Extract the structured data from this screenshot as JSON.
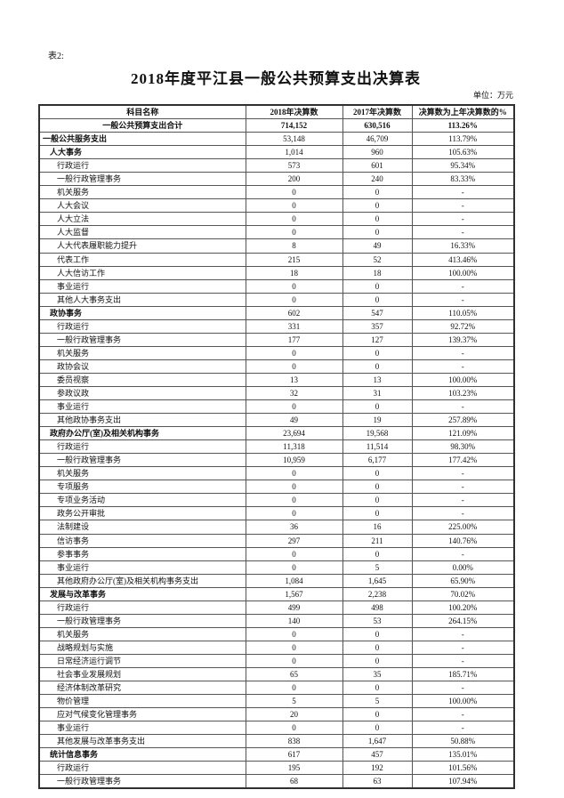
{
  "page": {
    "table_label": "表2:",
    "title": "2018年度平江县一般公共预算支出决算表",
    "unit_note": "单位：万元"
  },
  "table": {
    "columns": [
      "科目名称",
      "2018年决算数",
      "2017年决算数",
      "决算数为上年决算数的%"
    ],
    "rows": [
      {
        "level": 0,
        "name": "一般公共预算支出合计",
        "v2018": "714,152",
        "v2017": "630,516",
        "pct": "113.26%"
      },
      {
        "level": 1,
        "name": "一般公共服务支出",
        "v2018": "53,148",
        "v2017": "46,709",
        "pct": "113.79%"
      },
      {
        "level": 2,
        "name": "人大事务",
        "v2018": "1,014",
        "v2017": "960",
        "pct": "105.63%"
      },
      {
        "level": 3,
        "name": "行政运行",
        "v2018": "573",
        "v2017": "601",
        "pct": "95.34%"
      },
      {
        "level": 3,
        "name": "一般行政管理事务",
        "v2018": "200",
        "v2017": "240",
        "pct": "83.33%"
      },
      {
        "level": 3,
        "name": "机关服务",
        "v2018": "0",
        "v2017": "0",
        "pct": "-"
      },
      {
        "level": 3,
        "name": "人大会议",
        "v2018": "0",
        "v2017": "0",
        "pct": "-"
      },
      {
        "level": 3,
        "name": "人大立法",
        "v2018": "0",
        "v2017": "0",
        "pct": "-"
      },
      {
        "level": 3,
        "name": "人大监督",
        "v2018": "0",
        "v2017": "0",
        "pct": "-"
      },
      {
        "level": 3,
        "name": "人大代表履职能力提升",
        "v2018": "8",
        "v2017": "49",
        "pct": "16.33%"
      },
      {
        "level": 3,
        "name": "代表工作",
        "v2018": "215",
        "v2017": "52",
        "pct": "413.46%"
      },
      {
        "level": 3,
        "name": "人大信访工作",
        "v2018": "18",
        "v2017": "18",
        "pct": "100.00%"
      },
      {
        "level": 3,
        "name": "事业运行",
        "v2018": "0",
        "v2017": "0",
        "pct": "-"
      },
      {
        "level": 3,
        "name": "其他人大事务支出",
        "v2018": "0",
        "v2017": "0",
        "pct": "-"
      },
      {
        "level": 2,
        "name": "政协事务",
        "v2018": "602",
        "v2017": "547",
        "pct": "110.05%"
      },
      {
        "level": 3,
        "name": "行政运行",
        "v2018": "331",
        "v2017": "357",
        "pct": "92.72%"
      },
      {
        "level": 3,
        "name": "一般行政管理事务",
        "v2018": "177",
        "v2017": "127",
        "pct": "139.37%"
      },
      {
        "level": 3,
        "name": "机关服务",
        "v2018": "0",
        "v2017": "0",
        "pct": "-"
      },
      {
        "level": 3,
        "name": "政协会议",
        "v2018": "0",
        "v2017": "0",
        "pct": "-"
      },
      {
        "level": 3,
        "name": "委员视察",
        "v2018": "13",
        "v2017": "13",
        "pct": "100.00%"
      },
      {
        "level": 3,
        "name": "参政议政",
        "v2018": "32",
        "v2017": "31",
        "pct": "103.23%"
      },
      {
        "level": 3,
        "name": "事业运行",
        "v2018": "0",
        "v2017": "0",
        "pct": "-"
      },
      {
        "level": 3,
        "name": "其他政协事务支出",
        "v2018": "49",
        "v2017": "19",
        "pct": "257.89%"
      },
      {
        "level": 2,
        "name": "政府办公厅(室)及相关机构事务",
        "v2018": "23,694",
        "v2017": "19,568",
        "pct": "121.09%"
      },
      {
        "level": 3,
        "name": "行政运行",
        "v2018": "11,318",
        "v2017": "11,514",
        "pct": "98.30%"
      },
      {
        "level": 3,
        "name": "一般行政管理事务",
        "v2018": "10,959",
        "v2017": "6,177",
        "pct": "177.42%"
      },
      {
        "level": 3,
        "name": "机关服务",
        "v2018": "0",
        "v2017": "0",
        "pct": "-"
      },
      {
        "level": 3,
        "name": "专项服务",
        "v2018": "0",
        "v2017": "0",
        "pct": "-"
      },
      {
        "level": 3,
        "name": "专项业务活动",
        "v2018": "0",
        "v2017": "0",
        "pct": "-"
      },
      {
        "level": 3,
        "name": "政务公开审批",
        "v2018": "0",
        "v2017": "0",
        "pct": "-"
      },
      {
        "level": 3,
        "name": "法制建设",
        "v2018": "36",
        "v2017": "16",
        "pct": "225.00%"
      },
      {
        "level": 3,
        "name": "信访事务",
        "v2018": "297",
        "v2017": "211",
        "pct": "140.76%"
      },
      {
        "level": 3,
        "name": "参事事务",
        "v2018": "0",
        "v2017": "0",
        "pct": "-"
      },
      {
        "level": 3,
        "name": "事业运行",
        "v2018": "0",
        "v2017": "5",
        "pct": "0.00%"
      },
      {
        "level": 3,
        "name": "其他政府办公厅(室)及相关机构事务支出",
        "v2018": "1,084",
        "v2017": "1,645",
        "pct": "65.90%"
      },
      {
        "level": 2,
        "name": "发展与改革事务",
        "v2018": "1,567",
        "v2017": "2,238",
        "pct": "70.02%"
      },
      {
        "level": 3,
        "name": "行政运行",
        "v2018": "499",
        "v2017": "498",
        "pct": "100.20%"
      },
      {
        "level": 3,
        "name": "一般行政管理事务",
        "v2018": "140",
        "v2017": "53",
        "pct": "264.15%"
      },
      {
        "level": 3,
        "name": "机关服务",
        "v2018": "0",
        "v2017": "0",
        "pct": "-"
      },
      {
        "level": 3,
        "name": "战略规划与实施",
        "v2018": "0",
        "v2017": "0",
        "pct": "-"
      },
      {
        "level": 3,
        "name": "日常经济运行调节",
        "v2018": "0",
        "v2017": "0",
        "pct": "-"
      },
      {
        "level": 3,
        "name": "社会事业发展规划",
        "v2018": "65",
        "v2017": "35",
        "pct": "185.71%"
      },
      {
        "level": 3,
        "name": "经济体制改革研究",
        "v2018": "0",
        "v2017": "0",
        "pct": "-"
      },
      {
        "level": 3,
        "name": "物价管理",
        "v2018": "5",
        "v2017": "5",
        "pct": "100.00%"
      },
      {
        "level": 3,
        "name": "应对气候变化管理事务",
        "v2018": "20",
        "v2017": "0",
        "pct": "-"
      },
      {
        "level": 3,
        "name": "事业运行",
        "v2018": "0",
        "v2017": "0",
        "pct": "-"
      },
      {
        "level": 3,
        "name": "其他发展与改革事务支出",
        "v2018": "838",
        "v2017": "1,647",
        "pct": "50.88%"
      },
      {
        "level": 2,
        "name": "统计信息事务",
        "v2018": "617",
        "v2017": "457",
        "pct": "135.01%"
      },
      {
        "level": 3,
        "name": "行政运行",
        "v2018": "195",
        "v2017": "192",
        "pct": "101.56%"
      },
      {
        "level": 3,
        "name": "一般行政管理事务",
        "v2018": "68",
        "v2017": "63",
        "pct": "107.94%"
      }
    ]
  }
}
